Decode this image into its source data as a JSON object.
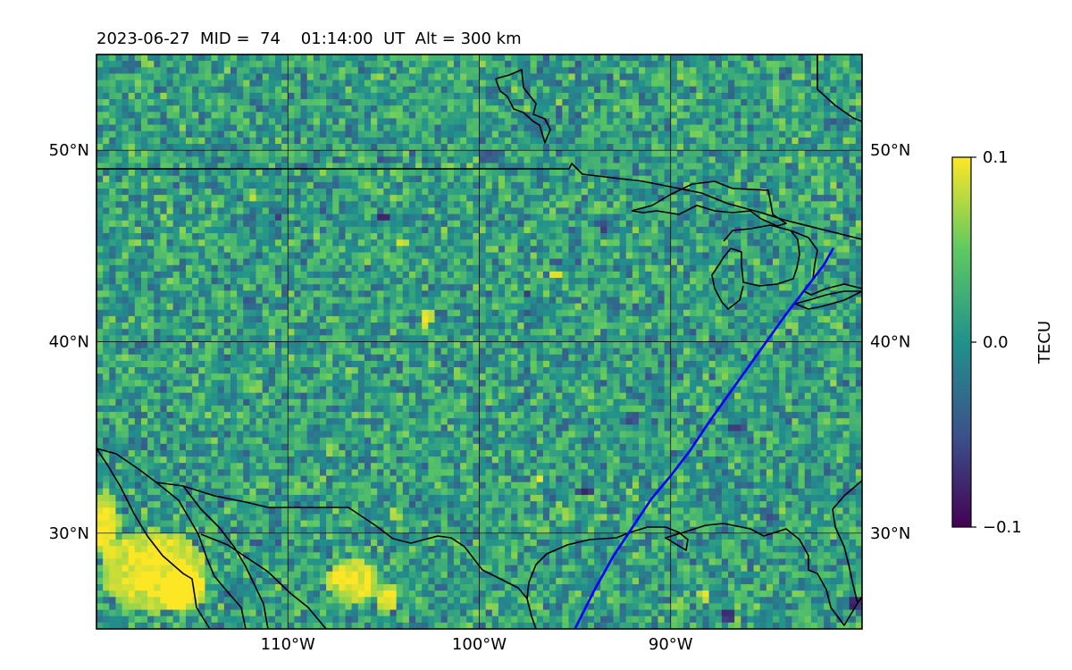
{
  "chart_data": {
    "type": "heatmap",
    "title": "2023-06-27  MID =  74    01:14:00  UT  Alt = 300 km",
    "date": "2023-06-27",
    "mid": 74,
    "time_ut": "01:14:00",
    "altitude_km": 300,
    "map_extent": {
      "lon": [
        -120,
        -80
      ],
      "lat": [
        25,
        55
      ]
    },
    "x_ticks": [
      {
        "value": -110,
        "label": "110°W"
      },
      {
        "value": -100,
        "label": "100°W"
      },
      {
        "value": -90,
        "label": "90°W"
      }
    ],
    "y_ticks": [
      {
        "value": 50,
        "label": "50°N"
      },
      {
        "value": 40,
        "label": "40°N"
      },
      {
        "value": 30,
        "label": "30°N"
      }
    ],
    "grid": true,
    "colorbar": {
      "label": "TECU",
      "range": [
        -0.1,
        0.1
      ],
      "ticks": [
        {
          "value": 0.1,
          "label": "0.1"
        },
        {
          "value": 0.0,
          "label": "0.0"
        },
        {
          "value": -0.1,
          "label": "−0.1"
        }
      ],
      "colormap": "viridis",
      "position": "right"
    },
    "colors": {
      "track": "#0000ff",
      "coastline": "#000000",
      "colormap_stops": [
        "#440154",
        "#3b528b",
        "#21918c",
        "#5ec962",
        "#fde725"
      ]
    },
    "track": {
      "name": "",
      "lon": [
        -95,
        -94,
        -93,
        -92,
        -91,
        -90,
        -89,
        -88,
        -87,
        -86,
        -85,
        -84,
        -83,
        -82,
        -81.5
      ],
      "lat": [
        25.0,
        27.0,
        28.8,
        30.3,
        31.8,
        33.0,
        34.3,
        35.8,
        37.2,
        38.6,
        40.0,
        41.4,
        42.7,
        44.0,
        44.9
      ]
    },
    "anomaly_patches": [
      {
        "lon": -117.0,
        "lat": 28.0,
        "rlon": 2.8,
        "rlat": 2.2,
        "value": 0.1
      },
      {
        "lon": -119.5,
        "lat": 30.5,
        "rlon": 0.7,
        "rlat": 1.8,
        "value": 0.1
      },
      {
        "lon": -115.5,
        "lat": 27.0,
        "rlon": 1.3,
        "rlat": 1.2,
        "value": 0.1
      },
      {
        "lon": -106.6,
        "lat": 27.5,
        "rlon": 1.4,
        "rlat": 1.1,
        "value": 0.1
      },
      {
        "lon": -104.8,
        "lat": 26.6,
        "rlon": 0.6,
        "rlat": 0.8,
        "value": 0.1
      },
      {
        "lon": -102.8,
        "lat": 41.2,
        "rlon": 0.35,
        "rlat": 0.6,
        "value": 0.1
      },
      {
        "lon": -104.0,
        "lat": 45.2,
        "rlon": 0.5,
        "rlat": 0.3,
        "value": 0.09
      },
      {
        "lon": -96.0,
        "lat": 43.5,
        "rlon": 0.3,
        "rlat": 0.3,
        "value": 0.1
      },
      {
        "lon": -88.2,
        "lat": 26.7,
        "rlon": 0.4,
        "rlat": 0.3,
        "value": 0.09
      },
      {
        "lon": -96.9,
        "lat": 32.9,
        "rlon": 0.4,
        "rlat": 0.3,
        "value": 0.08
      },
      {
        "lon": -95.4,
        "lat": 31.0,
        "rlon": 0.3,
        "rlat": 0.4,
        "value": 0.08
      },
      {
        "lon": -111.8,
        "lat": 47.6,
        "rlon": 0.3,
        "rlat": 0.3,
        "value": 0.08
      },
      {
        "lon": -104.4,
        "lat": 31.0,
        "rlon": 0.3,
        "rlat": 0.3,
        "value": 0.08
      },
      {
        "lon": -89.6,
        "lat": 26.3,
        "rlon": 0.3,
        "rlat": 0.3,
        "value": 0.08
      },
      {
        "lon": -94.5,
        "lat": 32.2,
        "rlon": 0.4,
        "rlat": 0.3,
        "value": -0.08
      },
      {
        "lon": -110.5,
        "lat": 46.5,
        "rlon": 0.3,
        "rlat": 0.3,
        "value": -0.08
      },
      {
        "lon": -108.5,
        "lat": 49.7,
        "rlon": 0.3,
        "rlat": 0.3,
        "value": -0.06
      },
      {
        "lon": -105.0,
        "lat": 49.5,
        "rlon": 0.3,
        "rlat": 0.3,
        "value": -0.06
      },
      {
        "lon": -99.5,
        "lat": 49.7,
        "rlon": 0.5,
        "rlat": 0.3,
        "value": -0.06
      },
      {
        "lon": -105.0,
        "lat": 46.5,
        "rlon": 0.3,
        "rlat": 0.3,
        "value": -0.07
      },
      {
        "lon": -97.5,
        "lat": 42.5,
        "rlon": 0.3,
        "rlat": 0.3,
        "value": -0.06
      },
      {
        "lon": -93.5,
        "lat": 46.0,
        "rlon": 0.3,
        "rlat": 0.3,
        "value": -0.06
      },
      {
        "lon": -93.0,
        "lat": 42.0,
        "rlon": 0.3,
        "rlat": 0.3,
        "value": -0.05
      },
      {
        "lon": -86.5,
        "lat": 35.5,
        "rlon": 0.4,
        "rlat": 0.3,
        "value": -0.07
      },
      {
        "lon": -92.0,
        "lat": 36.0,
        "rlon": 0.3,
        "rlat": 0.3,
        "value": -0.06
      },
      {
        "lon": -87.0,
        "lat": 25.7,
        "rlon": 0.4,
        "rlat": 0.3,
        "value": -0.08
      },
      {
        "lon": -80.3,
        "lat": 26.3,
        "rlon": 0.3,
        "rlat": 0.3,
        "value": -0.1
      },
      {
        "lon": -85.0,
        "lat": 31.0,
        "rlon": 0.3,
        "rlat": 0.3,
        "value": -0.06
      },
      {
        "lon": -100.5,
        "lat": 37.5,
        "rlon": 0.3,
        "rlat": 0.3,
        "value": -0.05
      },
      {
        "lon": -112.0,
        "lat": 42.0,
        "rlon": 0.3,
        "rlat": 0.3,
        "value": -0.05
      },
      {
        "lon": -110.0,
        "lat": 53.5,
        "rlon": 0.3,
        "rlat": 0.3,
        "value": 0.05
      },
      {
        "lon": -89.0,
        "lat": 53.8,
        "rlon": 0.4,
        "rlat": 0.5,
        "value": 0.05
      },
      {
        "lon": -84.5,
        "lat": 53.2,
        "rlon": 0.4,
        "rlat": 1.0,
        "value": 0.05
      }
    ]
  }
}
